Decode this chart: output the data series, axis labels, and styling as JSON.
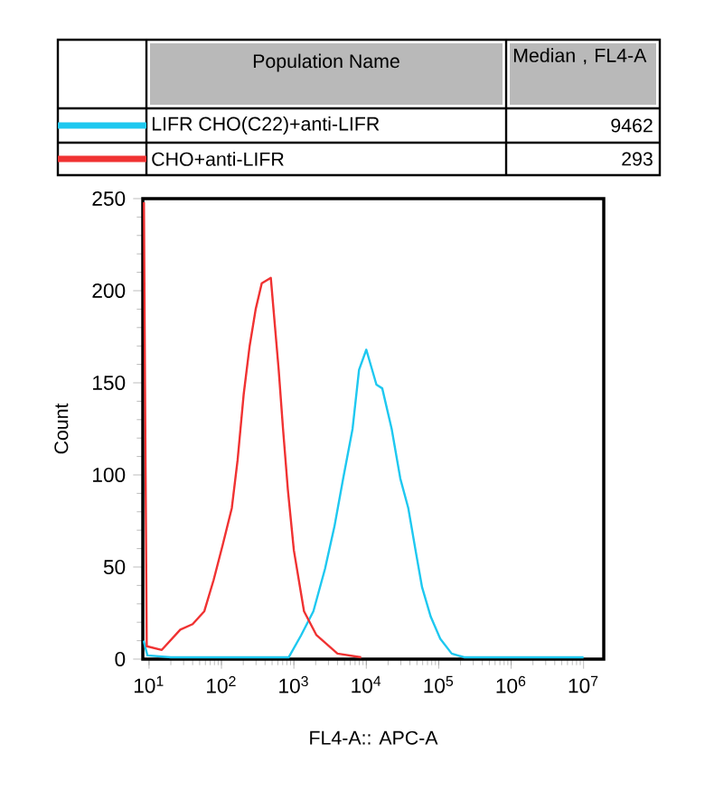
{
  "chart_data": {
    "type": "line",
    "xlabel": "FL4-A:: APC-A",
    "ylabel": "Count",
    "legend_title": "Population Name",
    "annotations": [
      "Median , FL4-A",
      "9462",
      "293"
    ],
    "log": "x",
    "legend": "top",
    "xlim": [
      8.2,
      19000000
    ],
    "ylim": [
      0,
      250
    ],
    "xticks": [
      {
        "value": 10,
        "label": "10$^{1}$"
      },
      {
        "value": 100,
        "label": "10$^{2}$"
      },
      {
        "value": 1000,
        "label": "10$^{3}$"
      },
      {
        "value": 10000,
        "label": "10$^{4}$"
      },
      {
        "value": 100000,
        "label": "10$^{5}$"
      },
      {
        "value": 1000000,
        "label": "10$^{6}$"
      },
      {
        "value": 10000000,
        "label": "10$^{7}$"
      }
    ],
    "yticks": [
      0,
      50,
      100,
      150,
      200,
      250
    ],
    "series": [
      {
        "name": "LIFR CHO(C22)+anti-LIFR",
        "color": "#1ec8f0",
        "x": [
          8.4,
          9.5,
          20,
          850,
          1260,
          1860,
          2690,
          3630,
          4790,
          6460,
          7940,
          10000,
          13800,
          16600,
          22400,
          29500,
          38000,
          47900,
          58900,
          77600,
          105000,
          151000,
          224000,
          10000000
        ],
        "values": [
          10,
          2,
          1,
          1,
          13,
          26,
          49,
          72,
          98,
          125,
          157,
          168,
          149,
          147,
          125,
          98,
          82,
          59,
          39,
          23,
          11,
          3,
          1,
          1
        ]
      },
      {
        "name": "CHO+anti-LIFR",
        "color": "#f03232",
        "x": [
          8.5,
          8.8,
          9.3,
          15,
          27,
          40,
          58,
          78,
          104,
          139,
          167,
          203,
          245,
          297,
          360,
          480,
          617,
          708,
          826,
          1000,
          1380,
          2050,
          4000,
          8500
        ],
        "values": [
          248,
          148,
          7,
          5,
          16,
          19,
          26,
          43,
          62,
          82,
          108,
          144,
          170,
          190,
          204,
          207,
          157,
          125,
          92,
          59,
          26,
          13,
          3,
          1
        ]
      }
    ]
  }
}
